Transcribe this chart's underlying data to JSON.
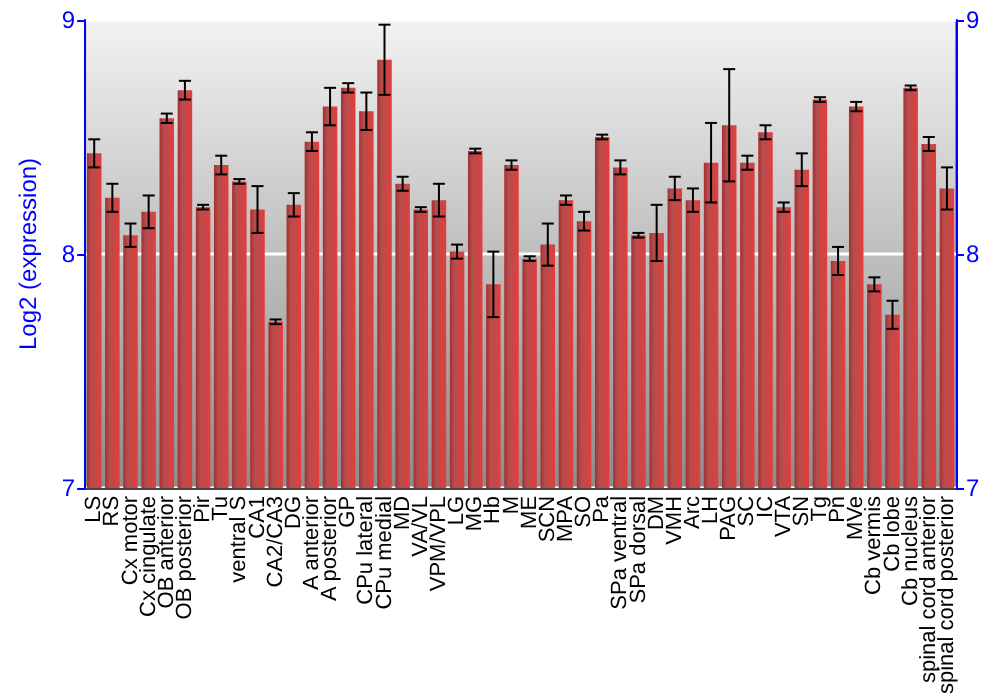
{
  "chart_data": {
    "type": "bar",
    "ylabel": "Log2 (expression)",
    "categories": [
      "LS",
      "RS",
      "Cx motor",
      "Cx cingulate",
      "OB anterior",
      "OB posterior",
      "Pir",
      "Tu",
      "ventral S",
      "CA1",
      "CA2/CA3",
      "DG",
      "A anterior",
      "A posterior",
      "GP",
      "CPu lateral",
      "CPu medial",
      "MD",
      "VA/VL",
      "VPM/VPL",
      "LG",
      "MG",
      "Hb",
      "M",
      "ME",
      "SCN",
      "MPA",
      "SO",
      "Pa",
      "SPa ventral",
      "SPa dorsal",
      "DM",
      "VMH",
      "Arc",
      "LH",
      "PAG",
      "SC",
      "IC",
      "VTA",
      "SN",
      "Tg",
      "Pn",
      "MVe",
      "Cb vermis",
      "Cb lobe",
      "Cb nucleus",
      "spinal cord anterior",
      "spinal cord posterior"
    ],
    "series": [
      {
        "color": "#a82e2e",
        "values": [
          8.43,
          8.24,
          8.08,
          8.18,
          8.58,
          8.7,
          8.2,
          8.38,
          8.31,
          8.19,
          7.71,
          8.21,
          8.48,
          8.63,
          8.71,
          8.61,
          8.83,
          8.3,
          8.19,
          8.23,
          8.01,
          8.44,
          7.87,
          8.38,
          7.98,
          8.04,
          8.23,
          8.14,
          8.5,
          8.37,
          8.08,
          8.09,
          8.28,
          8.23,
          8.39,
          8.55,
          8.39,
          8.52,
          8.2,
          8.36,
          8.66,
          7.97,
          8.63,
          7.87,
          7.74,
          8.71,
          8.47,
          8.28
        ],
        "errors": [
          0.06,
          0.06,
          0.05,
          0.07,
          0.02,
          0.04,
          0.01,
          0.04,
          0.01,
          0.1,
          0.01,
          0.05,
          0.04,
          0.08,
          0.02,
          0.08,
          0.15,
          0.03,
          0.01,
          0.07,
          0.03,
          0.01,
          0.14,
          0.02,
          0.01,
          0.09,
          0.02,
          0.04,
          0.01,
          0.03,
          0.01,
          0.12,
          0.05,
          0.05,
          0.17,
          0.24,
          0.03,
          0.03,
          0.02,
          0.07,
          0.01,
          0.06,
          0.02,
          0.03,
          0.06,
          0.01,
          0.03,
          0.09
        ]
      }
    ],
    "ylim": [
      7,
      9
    ],
    "yticks": [
      7,
      8,
      9
    ],
    "y2lim": [
      7,
      9
    ],
    "y2ticks": [
      7,
      8,
      9
    ],
    "grid": "y"
  }
}
